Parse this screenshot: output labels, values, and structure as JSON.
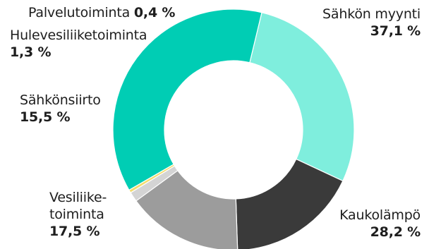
{
  "chart_data": {
    "type": "pie",
    "donut": true,
    "start_category": "Sähkön myynti",
    "direction": "clockwise",
    "categories": [
      "Sähkön myynti",
      "Kaukolämpö",
      "Vesiliiketoiminta",
      "Sähkönsiirto",
      "Hulevesiliiketoiminta",
      "Palvelutoiminta"
    ],
    "values": [
      37.1,
      28.2,
      17.5,
      15.5,
      1.3,
      0.4
    ],
    "colors": [
      "#00cdb4",
      "#7feedd",
      "#3a3a3a",
      "#9c9c9c",
      "#d4d4d4",
      "#f3dc6d"
    ],
    "labels": {
      "sahkon_myynti": {
        "name": "Sähkön myynti",
        "value": "37,1 %"
      },
      "kaukolampo": {
        "name": "Kaukolämpö",
        "value": "28,2 %"
      },
      "vesiliiketoiminta": {
        "name_line1": "Vesiliike-",
        "name_line2": "toiminta",
        "value": "17,5 %"
      },
      "sahkonsiirto": {
        "name": "Sähkönsiirto",
        "value": "15,5 %"
      },
      "hulevesi": {
        "name": "Hulevesiliiketoiminta",
        "value": "1,3 %"
      },
      "palvelu": {
        "name": "Palvelutoiminta",
        "value": "0,4 %"
      }
    }
  }
}
